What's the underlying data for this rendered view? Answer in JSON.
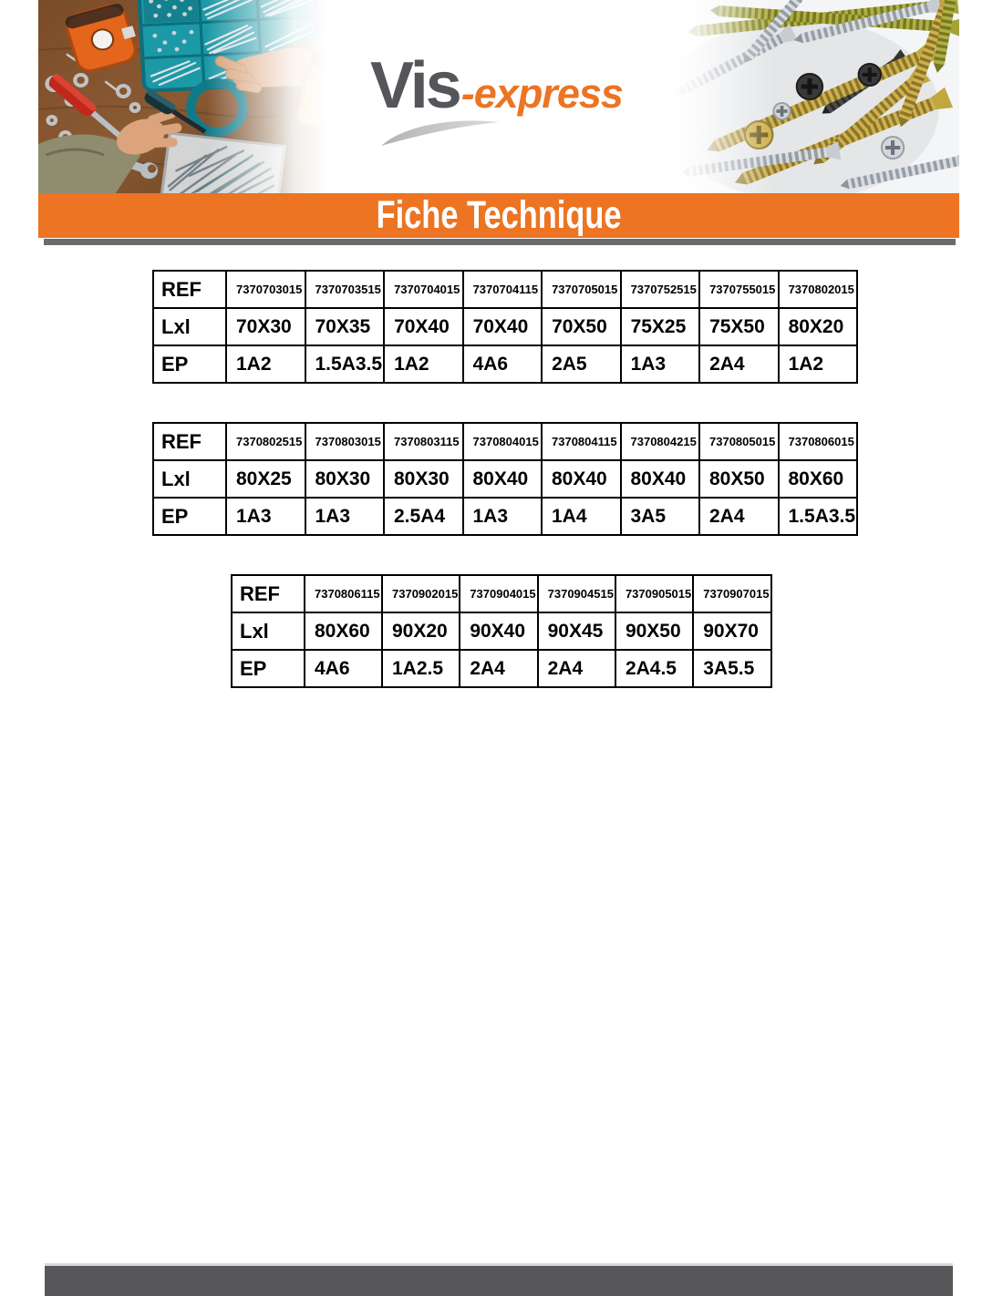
{
  "brand": {
    "vis": "Vis",
    "express": "-express"
  },
  "banner": {
    "title": "Fiche Technique"
  },
  "colors": {
    "accent_orange": "#EC7423",
    "logo_gray": "#55565A",
    "rule_gray": "#6A6B6E",
    "footer_gray": "#58585A",
    "table_border": "#000000"
  },
  "tables": [
    {
      "row_labels": {
        "ref": "REF",
        "dim": "Lxl",
        "ep": "EP"
      },
      "columns": [
        {
          "ref": "7370703015",
          "dim": "70X30",
          "ep": "1A2"
        },
        {
          "ref": "7370703515",
          "dim": "70X35",
          "ep": "1.5A3.5"
        },
        {
          "ref": "7370704015",
          "dim": "70X40",
          "ep": "1A2"
        },
        {
          "ref": "7370704115",
          "dim": "70X40",
          "ep": "4A6"
        },
        {
          "ref": "7370705015",
          "dim": "70X50",
          "ep": "2A5"
        },
        {
          "ref": "7370752515",
          "dim": "75X25",
          "ep": "1A3"
        },
        {
          "ref": "7370755015",
          "dim": "75X50",
          "ep": "2A4"
        },
        {
          "ref": "7370802015",
          "dim": "80X20",
          "ep": "1A2"
        }
      ]
    },
    {
      "row_labels": {
        "ref": "REF",
        "dim": "Lxl",
        "ep": "EP"
      },
      "columns": [
        {
          "ref": "7370802515",
          "dim": "80X25",
          "ep": "1A3"
        },
        {
          "ref": "7370803015",
          "dim": "80X30",
          "ep": "1A3"
        },
        {
          "ref": "7370803115",
          "dim": "80X30",
          "ep": "2.5A4"
        },
        {
          "ref": "7370804015",
          "dim": "80X40",
          "ep": "1A3"
        },
        {
          "ref": "7370804115",
          "dim": "80X40",
          "ep": "1A4"
        },
        {
          "ref": "7370804215",
          "dim": "80X40",
          "ep": "3A5"
        },
        {
          "ref": "7370805015",
          "dim": "80X50",
          "ep": "2A4"
        },
        {
          "ref": "7370806015",
          "dim": "80X60",
          "ep": "1.5A3.5"
        }
      ]
    },
    {
      "row_labels": {
        "ref": "REF",
        "dim": "Lxl",
        "ep": "EP"
      },
      "columns": [
        {
          "ref": "7370806115",
          "dim": "80X60",
          "ep": "4A6"
        },
        {
          "ref": "7370902015",
          "dim": "90X20",
          "ep": "1A2.5"
        },
        {
          "ref": "7370904015",
          "dim": "90X40",
          "ep": "2A4"
        },
        {
          "ref": "7370904515",
          "dim": "90X45",
          "ep": "2A4"
        },
        {
          "ref": "7370905015",
          "dim": "90X50",
          "ep": "2A4.5"
        },
        {
          "ref": "7370907015",
          "dim": "90X70",
          "ep": "3A5.5"
        }
      ]
    }
  ]
}
